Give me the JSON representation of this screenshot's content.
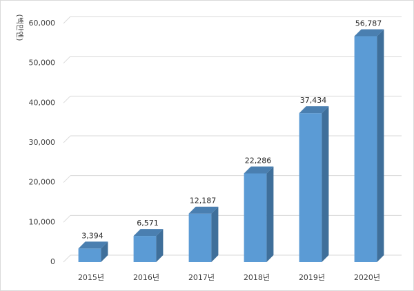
{
  "chart_data": {
    "type": "bar",
    "categories": [
      "2015년",
      "2016년",
      "2017년",
      "2018년",
      "2019년",
      "2020년"
    ],
    "values": [
      3394,
      6571,
      12187,
      22286,
      37434,
      56787
    ],
    "value_labels": [
      "3,394",
      "6,571",
      "12,187",
      "22,286",
      "37,434",
      "56,787"
    ],
    "ylabel": "(백만엔)",
    "ylim": [
      0,
      60000
    ],
    "yticks": [
      0,
      10000,
      20000,
      30000,
      40000,
      50000,
      60000
    ],
    "ytick_labels": [
      "0",
      "10,000",
      "20,000",
      "30,000",
      "40,000",
      "50,000",
      "60,000"
    ],
    "grid": true,
    "style": "3d-column",
    "colors": {
      "front": "#5b9bd5",
      "side": "#3f6f9a",
      "top": "#4a7fb0",
      "grid": "#d9d9d9"
    }
  }
}
